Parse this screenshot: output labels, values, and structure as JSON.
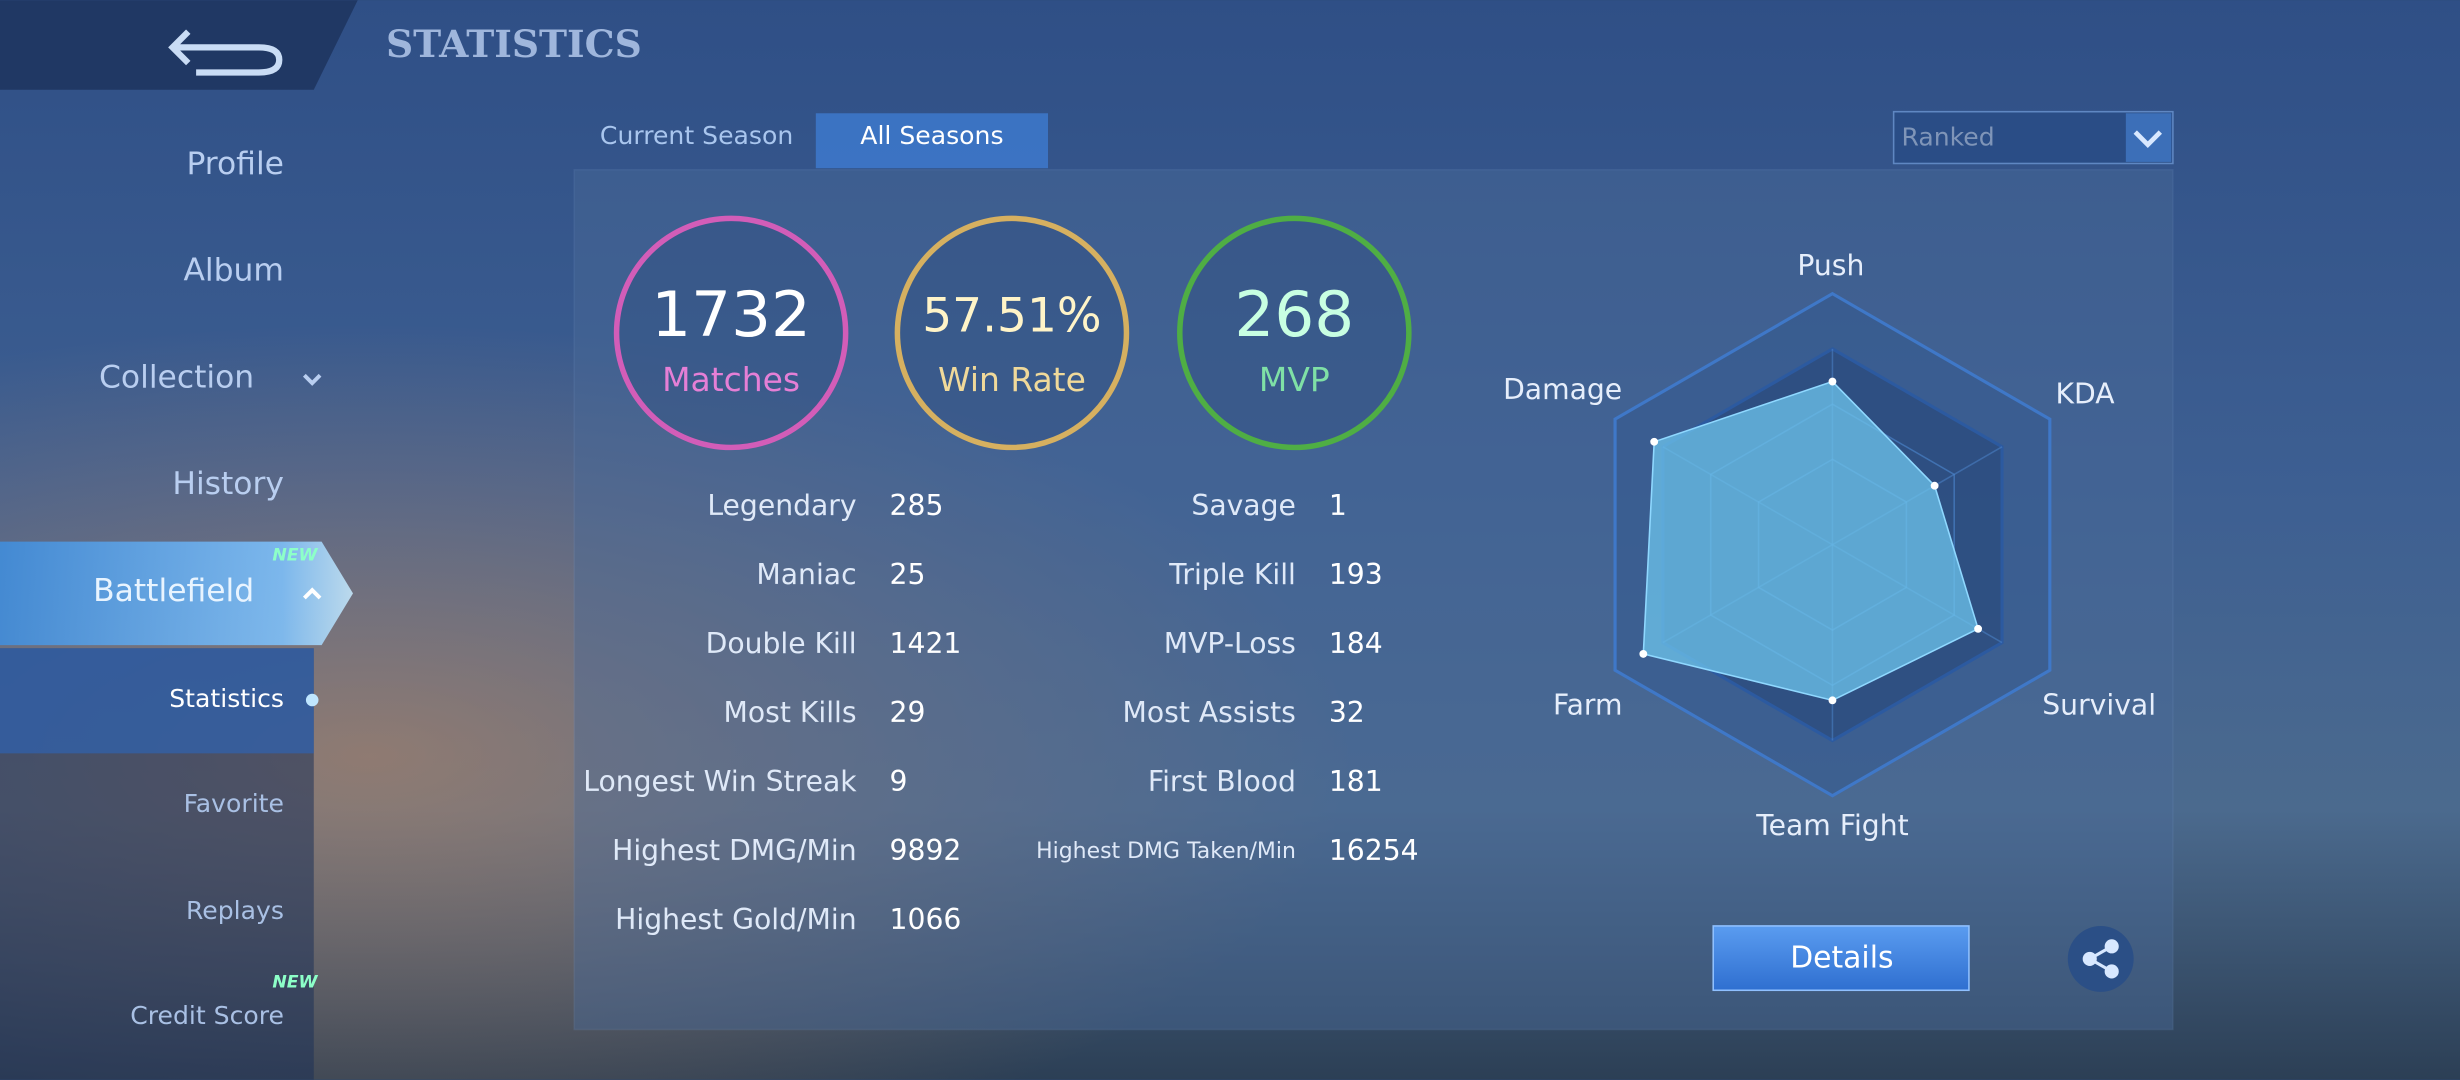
{
  "header": {
    "title": "STATISTICS"
  },
  "sidebar": {
    "items": [
      "Profile",
      "Album",
      "Collection",
      "History",
      "Battlefield"
    ],
    "subitems": [
      "Statistics",
      "Favorite",
      "Replays",
      "Credit Score"
    ],
    "badges": [
      "NEW",
      "NEW"
    ]
  },
  "tabs": [
    "Current Season",
    "All Seasons"
  ],
  "filter": "Ranked",
  "summary": [
    {
      "value": 1732,
      "label": "Matches"
    },
    {
      "value": "57.51%",
      "label": "Win Rate"
    },
    {
      "value": 268,
      "label": "MVP"
    }
  ],
  "stats_left": [
    [
      "Legendary",
      285
    ],
    [
      "Maniac",
      25
    ],
    [
      "Double Kill",
      1421
    ],
    [
      "Most Kills",
      29
    ],
    [
      "Longest Win Streak",
      9
    ],
    [
      "Highest DMG/Min",
      9892
    ],
    [
      "Highest Gold/Min",
      1066
    ]
  ],
  "stats_right": [
    [
      "Savage",
      1
    ],
    [
      "Triple Kill",
      193
    ],
    [
      "MVP-Loss",
      184
    ],
    [
      "Most Assists",
      32
    ],
    [
      "First Blood",
      181
    ],
    [
      "Highest DMG Taken/Min",
      16254
    ]
  ],
  "radar": {
    "type": "radar",
    "categories": [
      "Push",
      "KDA",
      "Survival",
      "Team Fight",
      "Farm",
      "Damage"
    ],
    "values": [
      65,
      47,
      67,
      62,
      87,
      82
    ],
    "rlim": [
      0,
      100
    ]
  },
  "details_button": "Details"
}
